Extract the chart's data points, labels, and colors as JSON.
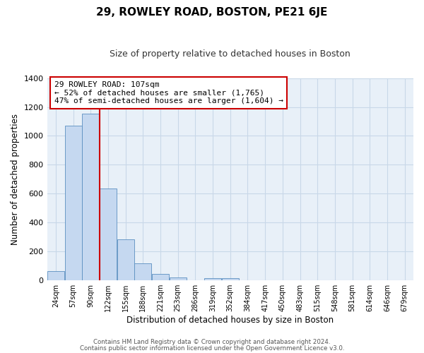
{
  "title": "29, ROWLEY ROAD, BOSTON, PE21 6JE",
  "subtitle": "Size of property relative to detached houses in Boston",
  "xlabel": "Distribution of detached houses by size in Boston",
  "ylabel": "Number of detached properties",
  "bar_labels": [
    "24sqm",
    "57sqm",
    "90sqm",
    "122sqm",
    "155sqm",
    "188sqm",
    "221sqm",
    "253sqm",
    "286sqm",
    "319sqm",
    "352sqm",
    "384sqm",
    "417sqm",
    "450sqm",
    "483sqm",
    "515sqm",
    "548sqm",
    "581sqm",
    "614sqm",
    "646sqm",
    "679sqm"
  ],
  "bar_values": [
    65,
    1070,
    1155,
    635,
    285,
    120,
    47,
    22,
    0,
    18,
    16,
    0,
    0,
    0,
    0,
    0,
    0,
    0,
    0,
    0,
    0
  ],
  "bar_color": "#c5d8f0",
  "bar_edge_color": "#5a8fc0",
  "vline_x": 2.5,
  "vline_color": "#cc0000",
  "annotation_text": "29 ROWLEY ROAD: 107sqm\n← 52% of detached houses are smaller (1,765)\n47% of semi-detached houses are larger (1,604) →",
  "annotation_box_edge": "#cc0000",
  "ylim": [
    0,
    1400
  ],
  "yticks": [
    0,
    200,
    400,
    600,
    800,
    1000,
    1200,
    1400
  ],
  "footer1": "Contains HM Land Registry data © Crown copyright and database right 2024.",
  "footer2": "Contains public sector information licensed under the Open Government Licence v3.0.",
  "bg_color": "#ffffff",
  "plot_bg_color": "#e8f0f8",
  "grid_color": "#c8d8e8"
}
